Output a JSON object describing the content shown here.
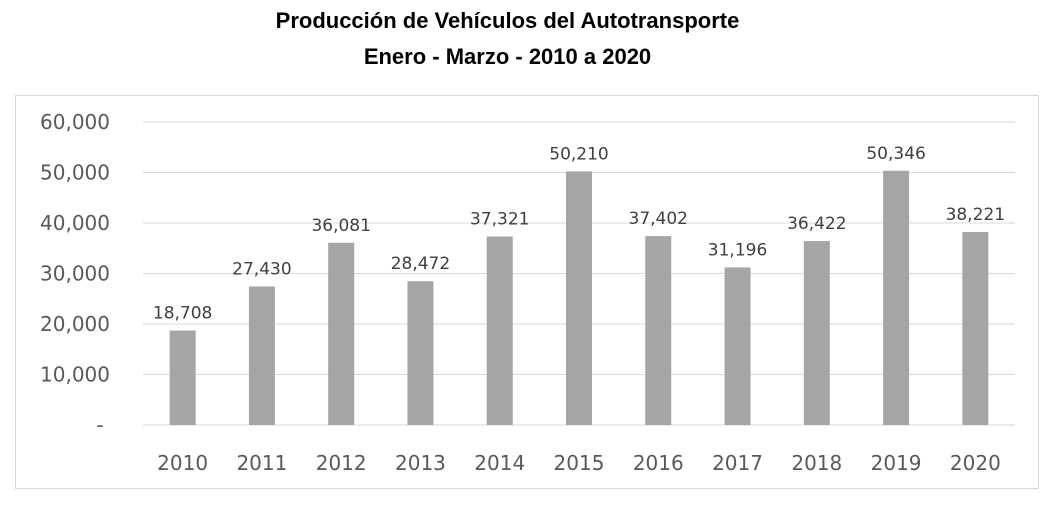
{
  "chart_data": {
    "type": "bar",
    "title": "Producción de Vehículos del Autotransporte",
    "subtitle": "Enero - Marzo - 2010 a 2020",
    "categories": [
      "2010",
      "2011",
      "2012",
      "2013",
      "2014",
      "2015",
      "2016",
      "2017",
      "2018",
      "2019",
      "2020"
    ],
    "values": [
      18708,
      27430,
      36081,
      28472,
      37321,
      50210,
      37402,
      31196,
      36422,
      50346,
      38221
    ],
    "data_labels": [
      "18,708",
      "27,430",
      "36,081",
      "28,472",
      "37,321",
      "50,210",
      "37,402",
      "31,196",
      "36,422",
      "50,346",
      "38,221"
    ],
    "y_ticks": [
      "-",
      "10,000",
      "20,000",
      "30,000",
      "40,000",
      "50,000",
      "60,000"
    ],
    "ylim": [
      0,
      60000
    ],
    "xlabel": "",
    "ylabel": "",
    "grid": true,
    "bar_color": "#a5a5a5"
  }
}
